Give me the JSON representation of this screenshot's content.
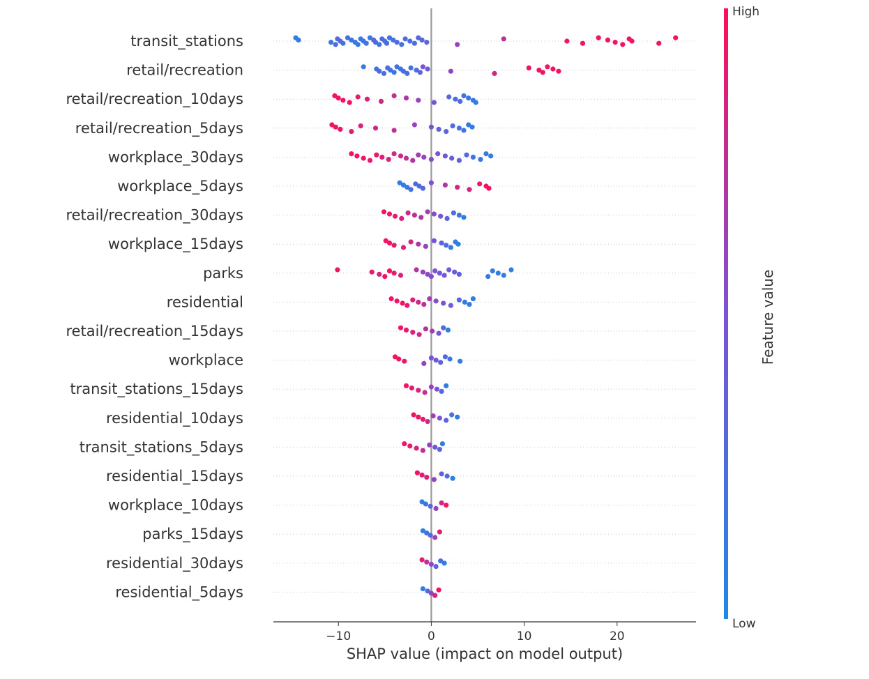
{
  "chart_data": {
    "type": "scatter",
    "subtype": "shap-beeswarm",
    "xlabel": "SHAP value (impact on model output)",
    "xlim": [
      -17,
      28.5
    ],
    "xticks": [
      -10,
      0,
      10,
      20
    ],
    "xtick_labels": [
      "−10",
      "0",
      "10",
      "20"
    ],
    "colorbar": {
      "title": "Feature value",
      "high_label": "High",
      "low_label": "Low",
      "low_color": "#1e88e5",
      "high_color": "#ff0d57"
    },
    "features": [
      {
        "name": "transit_stations",
        "points": [
          [
            -14.6,
            0.1
          ],
          [
            -14.3,
            0.1
          ],
          [
            -10.8,
            0.15
          ],
          [
            -10.3,
            0.25
          ],
          [
            -10.1,
            0.3
          ],
          [
            -9.8,
            0.3
          ],
          [
            -9.5,
            0.2
          ],
          [
            -9.0,
            0.2
          ],
          [
            -8.6,
            0.15
          ],
          [
            -8.2,
            0.15
          ],
          [
            -7.9,
            0.1
          ],
          [
            -7.6,
            0.15
          ],
          [
            -7.3,
            0.2
          ],
          [
            -7.0,
            0.15
          ],
          [
            -6.6,
            0.15
          ],
          [
            -6.2,
            0.3
          ],
          [
            -6.0,
            0.25
          ],
          [
            -5.6,
            0.2
          ],
          [
            -5.3,
            0.25
          ],
          [
            -5.0,
            0.2
          ],
          [
            -4.8,
            0.25
          ],
          [
            -4.5,
            0.2
          ],
          [
            -4.1,
            0.2
          ],
          [
            -3.7,
            0.25
          ],
          [
            -3.2,
            0.2
          ],
          [
            -2.8,
            0.25
          ],
          [
            -2.3,
            0.25
          ],
          [
            -1.8,
            0.25
          ],
          [
            -1.4,
            0.3
          ],
          [
            -1.0,
            0.3
          ],
          [
            -0.5,
            0.3
          ],
          [
            2.8,
            0.6
          ],
          [
            7.8,
            0.75
          ],
          [
            14.6,
            0.95
          ],
          [
            16.3,
            0.95
          ],
          [
            18.0,
            0.95
          ],
          [
            19.0,
            0.95
          ],
          [
            19.8,
            0.95
          ],
          [
            20.6,
            0.95
          ],
          [
            21.3,
            0.95
          ],
          [
            21.6,
            0.95
          ],
          [
            24.5,
            0.95
          ],
          [
            26.3,
            0.95
          ]
        ]
      },
      {
        "name": "retail/recreation",
        "points": [
          [
            -7.3,
            0.15
          ],
          [
            -5.9,
            0.2
          ],
          [
            -5.6,
            0.25
          ],
          [
            -5.1,
            0.2
          ],
          [
            -4.7,
            0.25
          ],
          [
            -4.4,
            0.2
          ],
          [
            -4.0,
            0.15
          ],
          [
            -3.7,
            0.2
          ],
          [
            -3.3,
            0.2
          ],
          [
            -3.0,
            0.25
          ],
          [
            -2.6,
            0.2
          ],
          [
            -2.2,
            0.2
          ],
          [
            -1.6,
            0.25
          ],
          [
            -1.2,
            0.35
          ],
          [
            -0.9,
            0.5
          ],
          [
            -0.4,
            0.4
          ],
          [
            2.1,
            0.6
          ],
          [
            6.8,
            0.8
          ],
          [
            10.5,
            0.95
          ],
          [
            11.6,
            0.95
          ],
          [
            12.0,
            0.95
          ],
          [
            12.5,
            0.95
          ],
          [
            13.1,
            0.95
          ],
          [
            13.7,
            0.95
          ]
        ]
      },
      {
        "name": "retail/recreation_10days",
        "points": [
          [
            -10.4,
            0.95
          ],
          [
            -10.0,
            0.95
          ],
          [
            -9.5,
            0.95
          ],
          [
            -8.8,
            0.95
          ],
          [
            -7.9,
            0.9
          ],
          [
            -6.9,
            0.85
          ],
          [
            -5.4,
            0.8
          ],
          [
            -4.0,
            0.75
          ],
          [
            -2.7,
            0.7
          ],
          [
            -1.4,
            0.6
          ],
          [
            0.3,
            0.45
          ],
          [
            1.9,
            0.3
          ],
          [
            2.6,
            0.25
          ],
          [
            3.1,
            0.25
          ],
          [
            3.5,
            0.2
          ],
          [
            4.0,
            0.15
          ],
          [
            4.5,
            0.15
          ],
          [
            4.8,
            0.1
          ]
        ]
      },
      {
        "name": "retail/recreation_5days",
        "points": [
          [
            -10.7,
            0.95
          ],
          [
            -10.3,
            0.95
          ],
          [
            -9.8,
            0.95
          ],
          [
            -8.6,
            0.9
          ],
          [
            -7.6,
            0.85
          ],
          [
            -6.0,
            0.8
          ],
          [
            -4.0,
            0.75
          ],
          [
            -1.8,
            0.6
          ],
          [
            0.0,
            0.45
          ],
          [
            0.8,
            0.35
          ],
          [
            1.6,
            0.3
          ],
          [
            2.3,
            0.25
          ],
          [
            3.0,
            0.2
          ],
          [
            3.5,
            0.2
          ],
          [
            4.0,
            0.15
          ],
          [
            4.4,
            0.1
          ]
        ]
      },
      {
        "name": "workplace_30days",
        "points": [
          [
            -8.6,
            0.95
          ],
          [
            -8.0,
            0.95
          ],
          [
            -7.3,
            0.95
          ],
          [
            -6.6,
            0.9
          ],
          [
            -5.9,
            0.9
          ],
          [
            -5.3,
            0.85
          ],
          [
            -4.6,
            0.85
          ],
          [
            -4.0,
            0.8
          ],
          [
            -3.3,
            0.8
          ],
          [
            -2.7,
            0.75
          ],
          [
            -2.0,
            0.7
          ],
          [
            -1.4,
            0.65
          ],
          [
            -0.8,
            0.6
          ],
          [
            0.0,
            0.55
          ],
          [
            0.7,
            0.5
          ],
          [
            1.5,
            0.45
          ],
          [
            2.2,
            0.4
          ],
          [
            3.0,
            0.35
          ],
          [
            3.8,
            0.3
          ],
          [
            4.5,
            0.2
          ],
          [
            5.3,
            0.15
          ],
          [
            5.9,
            0.1
          ],
          [
            6.4,
            0.1
          ]
        ]
      },
      {
        "name": "workplace_5days",
        "points": [
          [
            -3.4,
            0.1
          ],
          [
            -3.0,
            0.1
          ],
          [
            -2.6,
            0.15
          ],
          [
            -2.2,
            0.2
          ],
          [
            -1.7,
            0.25
          ],
          [
            -1.3,
            0.25
          ],
          [
            -0.9,
            0.3
          ],
          [
            0.0,
            0.5
          ],
          [
            1.5,
            0.7
          ],
          [
            2.8,
            0.8
          ],
          [
            4.1,
            0.85
          ],
          [
            5.2,
            0.9
          ],
          [
            5.9,
            0.95
          ],
          [
            6.2,
            0.95
          ]
        ]
      },
      {
        "name": "retail/recreation_30days",
        "points": [
          [
            -5.1,
            0.95
          ],
          [
            -4.5,
            0.95
          ],
          [
            -3.9,
            0.9
          ],
          [
            -3.2,
            0.85
          ],
          [
            -2.5,
            0.8
          ],
          [
            -1.8,
            0.75
          ],
          [
            -1.1,
            0.7
          ],
          [
            -0.4,
            0.65
          ],
          [
            0.3,
            0.55
          ],
          [
            1.0,
            0.45
          ],
          [
            1.7,
            0.35
          ],
          [
            2.4,
            0.25
          ],
          [
            3.0,
            0.15
          ],
          [
            3.5,
            0.1
          ]
        ]
      },
      {
        "name": "workplace_15days",
        "points": [
          [
            -4.9,
            0.95
          ],
          [
            -4.5,
            0.95
          ],
          [
            -4.0,
            0.9
          ],
          [
            -3.0,
            0.85
          ],
          [
            -2.2,
            0.8
          ],
          [
            -1.4,
            0.7
          ],
          [
            -0.6,
            0.6
          ],
          [
            0.3,
            0.5
          ],
          [
            1.1,
            0.35
          ],
          [
            1.6,
            0.25
          ],
          [
            2.1,
            0.15
          ],
          [
            2.6,
            0.1
          ],
          [
            2.9,
            0.1
          ]
        ]
      },
      {
        "name": "parks",
        "points": [
          [
            -10.1,
            0.95
          ],
          [
            -6.4,
            0.9
          ],
          [
            -5.6,
            0.85
          ],
          [
            -5.0,
            0.95
          ],
          [
            -4.5,
            0.95
          ],
          [
            -4.0,
            0.9
          ],
          [
            -3.3,
            0.85
          ],
          [
            -1.6,
            0.7
          ],
          [
            -0.9,
            0.6
          ],
          [
            -0.4,
            0.55
          ],
          [
            0.0,
            0.55
          ],
          [
            0.4,
            0.5
          ],
          [
            0.9,
            0.45
          ],
          [
            1.4,
            0.45
          ],
          [
            1.9,
            0.4
          ],
          [
            2.5,
            0.4
          ],
          [
            3.0,
            0.35
          ],
          [
            6.1,
            0.15
          ],
          [
            6.6,
            0.1
          ],
          [
            7.2,
            0.1
          ],
          [
            7.8,
            0.1
          ],
          [
            8.6,
            0.1
          ]
        ]
      },
      {
        "name": "residential",
        "points": [
          [
            -4.3,
            0.95
          ],
          [
            -3.7,
            0.95
          ],
          [
            -3.1,
            0.95
          ],
          [
            -2.6,
            0.9
          ],
          [
            -2.0,
            0.85
          ],
          [
            -1.4,
            0.8
          ],
          [
            -0.8,
            0.75
          ],
          [
            -0.2,
            0.65
          ],
          [
            0.5,
            0.55
          ],
          [
            1.3,
            0.5
          ],
          [
            2.1,
            0.4
          ],
          [
            3.0,
            0.25
          ],
          [
            3.6,
            0.15
          ],
          [
            4.1,
            0.1
          ],
          [
            4.5,
            0.1
          ]
        ]
      },
      {
        "name": "retail/recreation_15days",
        "points": [
          [
            -3.3,
            0.95
          ],
          [
            -2.7,
            0.9
          ],
          [
            -2.0,
            0.85
          ],
          [
            -1.3,
            0.8
          ],
          [
            -0.6,
            0.75
          ],
          [
            0.1,
            0.65
          ],
          [
            0.8,
            0.45
          ],
          [
            1.3,
            0.25
          ],
          [
            1.8,
            0.1
          ]
        ]
      },
      {
        "name": "workplace",
        "points": [
          [
            -3.9,
            0.95
          ],
          [
            -3.5,
            0.95
          ],
          [
            -2.9,
            0.9
          ],
          [
            -0.8,
            0.6
          ],
          [
            0.0,
            0.5
          ],
          [
            0.5,
            0.45
          ],
          [
            1.0,
            0.35
          ],
          [
            1.5,
            0.25
          ],
          [
            2.0,
            0.15
          ],
          [
            3.1,
            0.1
          ]
        ]
      },
      {
        "name": "transit_stations_15days",
        "points": [
          [
            -2.7,
            0.95
          ],
          [
            -2.1,
            0.9
          ],
          [
            -1.4,
            0.85
          ],
          [
            -0.7,
            0.75
          ],
          [
            0.0,
            0.6
          ],
          [
            0.6,
            0.45
          ],
          [
            1.1,
            0.3
          ],
          [
            1.6,
            0.1
          ]
        ]
      },
      {
        "name": "residential_10days",
        "points": [
          [
            -1.9,
            0.95
          ],
          [
            -1.4,
            0.95
          ],
          [
            -0.9,
            0.9
          ],
          [
            -0.4,
            0.8
          ],
          [
            0.2,
            0.65
          ],
          [
            0.9,
            0.5
          ],
          [
            1.6,
            0.35
          ],
          [
            2.2,
            0.2
          ],
          [
            2.8,
            0.1
          ]
        ]
      },
      {
        "name": "transit_stations_5days",
        "points": [
          [
            -2.9,
            0.95
          ],
          [
            -2.3,
            0.9
          ],
          [
            -1.6,
            0.85
          ],
          [
            -0.9,
            0.75
          ],
          [
            -0.2,
            0.6
          ],
          [
            0.4,
            0.45
          ],
          [
            0.9,
            0.3
          ],
          [
            1.2,
            0.1
          ]
        ]
      },
      {
        "name": "residential_15days",
        "points": [
          [
            -1.5,
            0.95
          ],
          [
            -1.0,
            0.9
          ],
          [
            -0.5,
            0.85
          ],
          [
            0.3,
            0.6
          ],
          [
            1.1,
            0.4
          ],
          [
            1.7,
            0.25
          ],
          [
            2.3,
            0.1
          ]
        ]
      },
      {
        "name": "workplace_10days",
        "points": [
          [
            -1.0,
            0.1
          ],
          [
            -0.6,
            0.15
          ],
          [
            -0.1,
            0.3
          ],
          [
            0.5,
            0.6
          ],
          [
            1.1,
            0.8
          ],
          [
            1.6,
            0.95
          ]
        ]
      },
      {
        "name": "parks_15days",
        "points": [
          [
            -0.9,
            0.1
          ],
          [
            -0.5,
            0.15
          ],
          [
            -0.1,
            0.3
          ],
          [
            0.4,
            0.65
          ],
          [
            0.9,
            0.9
          ]
        ]
      },
      {
        "name": "residential_30days",
        "points": [
          [
            -1.0,
            0.9
          ],
          [
            -0.5,
            0.75
          ],
          [
            0.0,
            0.55
          ],
          [
            0.5,
            0.35
          ],
          [
            1.0,
            0.2
          ],
          [
            1.4,
            0.1
          ]
        ]
      },
      {
        "name": "residential_5days",
        "points": [
          [
            -0.9,
            0.1
          ],
          [
            -0.4,
            0.3
          ],
          [
            0.0,
            0.6
          ],
          [
            0.4,
            0.85
          ],
          [
            0.8,
            0.95
          ]
        ]
      }
    ]
  }
}
